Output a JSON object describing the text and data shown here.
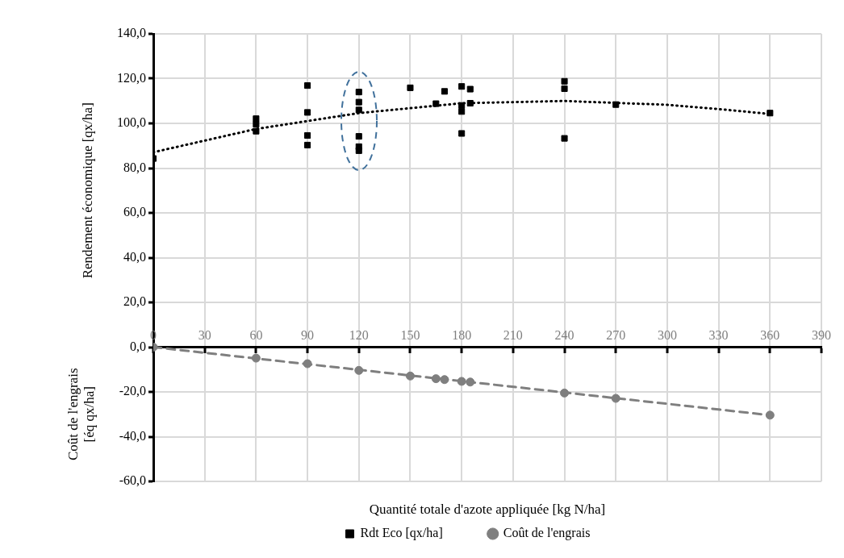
{
  "chart_data": {
    "type": "scatter",
    "xlabel": "Quantité totale d'azote appliquée [kg N/ha]",
    "ylabel": "Rendement économique [qx/ha]",
    "annotations": [
      "Coût de l'engrais\n[éq qx/ha]"
    ],
    "xlim": [
      0,
      390
    ],
    "xticks": [
      0,
      30,
      60,
      90,
      120,
      150,
      180,
      210,
      240,
      270,
      300,
      330,
      360,
      390
    ],
    "ylim": [
      -60,
      140
    ],
    "yticks": [
      {
        "value": -60,
        "label": "-60,0"
      },
      {
        "value": -40,
        "label": "-40,0"
      },
      {
        "value": -20,
        "label": "-20,0"
      },
      {
        "value": 0,
        "label": "0,0"
      },
      {
        "value": 20,
        "label": "20,0"
      },
      {
        "value": 40,
        "label": "40,0"
      },
      {
        "value": 60,
        "label": "60,0"
      },
      {
        "value": 80,
        "label": "80,0"
      },
      {
        "value": 100,
        "label": "100,0"
      },
      {
        "value": 120,
        "label": "120,0"
      },
      {
        "value": 140,
        "label": "140,0"
      }
    ],
    "grid": true,
    "legend": "bottom",
    "series": [
      {
        "name": "Rdt Eco [qx/ha]",
        "type": "scatter",
        "marker": "square",
        "color": "#000000",
        "x": [
          0,
          60,
          60,
          60,
          90,
          90,
          90,
          90,
          120,
          120,
          120,
          120,
          120,
          120,
          150,
          165,
          170,
          180,
          180,
          180,
          180,
          185,
          185,
          240,
          240,
          240,
          270,
          360
        ],
        "values": [
          84.3,
          102.1,
          99.6,
          96.5,
          116.9,
          104.9,
          94.6,
          90.3,
          114.0,
          109.5,
          106.0,
          94.2,
          89.6,
          87.8,
          115.9,
          108.8,
          114.3,
          116.5,
          108.0,
          105.3,
          95.5,
          115.3,
          109.0,
          118.8,
          115.5,
          93.3,
          108.4,
          104.6
        ]
      },
      {
        "name": "Coût de l'engrais",
        "type": "scatter",
        "marker": "circle",
        "color": "#7f7f7f",
        "x": [
          0,
          60,
          90,
          120,
          150,
          165,
          170,
          180,
          185,
          240,
          270,
          360
        ],
        "values": [
          0,
          -4.9,
          -7.4,
          -10.4,
          -12.9,
          -14.1,
          -14.5,
          -15.3,
          -15.6,
          -20.5,
          -22.9,
          -30.4
        ]
      },
      {
        "type": "line",
        "marker": "none",
        "line_style": "dotted",
        "color": "#000000",
        "x": [
          0,
          60,
          120,
          180,
          240,
          300,
          330,
          360
        ],
        "values": [
          87.1,
          97.5,
          104.6,
          109.0,
          110.0,
          108.3,
          106.4,
          104.2
        ]
      },
      {
        "type": "line",
        "marker": "none",
        "line_style": "dashed",
        "color": "#7f7f7f",
        "x": [
          0,
          360
        ],
        "values": [
          0,
          -30.4
        ]
      }
    ]
  }
}
